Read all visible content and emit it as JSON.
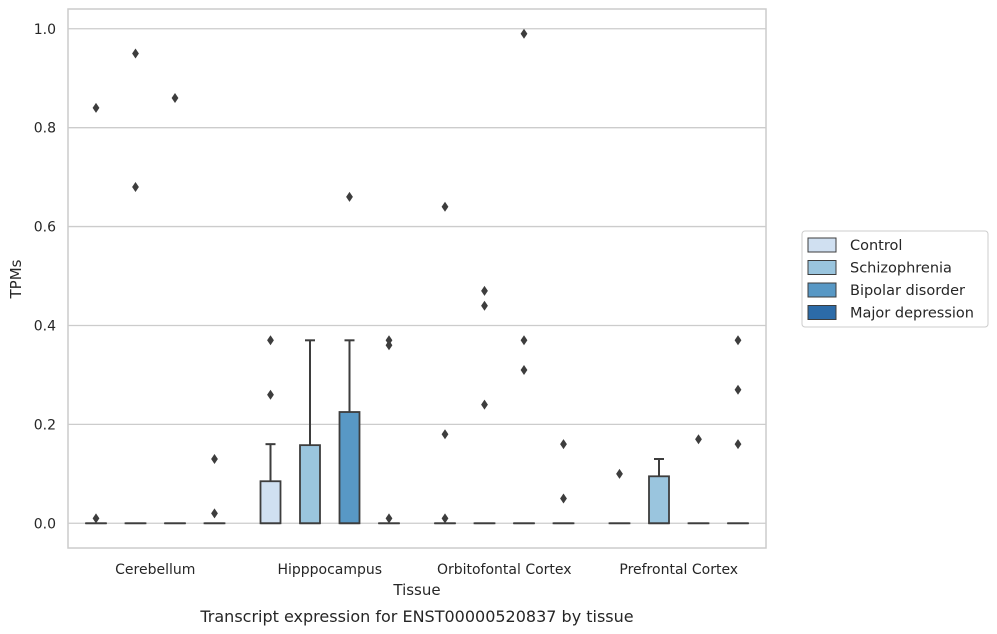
{
  "caption": "Transcript expression for ENST00000520837 by tissue",
  "colors": {
    "Control": "#d0e0f1",
    "Schizophrenia": "#9ac5de",
    "Bipolar disorder": "#5898c5",
    "Major depression": "#2c6ba8",
    "edge": "#3d3d3d",
    "grid": "#cccccc",
    "frame": "#cccccc"
  },
  "chart_data": {
    "type": "box",
    "xlabel": "Tissue",
    "ylabel": "TPMs",
    "categories": [
      "Cerebellum",
      "Hipppocampus",
      "Orbitofontal Cortex",
      "Prefrontal Cortex"
    ],
    "ylim": [
      -0.05,
      1.04
    ],
    "yticks": [
      "0.0",
      "0.2",
      "0.4",
      "0.6",
      "0.8",
      "1.0"
    ],
    "grid": true,
    "legend_position": "right",
    "series": [
      {
        "name": "Control",
        "boxes": [
          {
            "q1": 0,
            "median": 0,
            "q3": 0,
            "whisker_low": 0,
            "whisker_high": 0,
            "outliers": [
              0.01,
              0.84
            ]
          },
          {
            "q1": 0,
            "median": 0,
            "q3": 0.085,
            "whisker_low": 0,
            "whisker_high": 0.16,
            "outliers": [
              0.26,
              0.37
            ]
          },
          {
            "q1": 0,
            "median": 0,
            "q3": 0,
            "whisker_low": 0,
            "whisker_high": 0,
            "outliers": [
              0.01,
              0.18,
              0.64
            ]
          },
          {
            "q1": 0,
            "median": 0,
            "q3": 0,
            "whisker_low": 0,
            "whisker_high": 0,
            "outliers": [
              0.1
            ]
          }
        ]
      },
      {
        "name": "Schizophrenia",
        "boxes": [
          {
            "q1": 0,
            "median": 0,
            "q3": 0,
            "whisker_low": 0,
            "whisker_high": 0,
            "outliers": [
              0.68,
              0.95
            ]
          },
          {
            "q1": 0,
            "median": 0,
            "q3": 0.158,
            "whisker_low": 0,
            "whisker_high": 0.37,
            "outliers": []
          },
          {
            "q1": 0,
            "median": 0,
            "q3": 0,
            "whisker_low": 0,
            "whisker_high": 0,
            "outliers": [
              0.24,
              0.44,
              0.47
            ]
          },
          {
            "q1": 0,
            "median": 0,
            "q3": 0.095,
            "whisker_low": 0,
            "whisker_high": 0.13,
            "outliers": []
          }
        ]
      },
      {
        "name": "Bipolar disorder",
        "boxes": [
          {
            "q1": 0,
            "median": 0,
            "q3": 0,
            "whisker_low": 0,
            "whisker_high": 0,
            "outliers": [
              0.86
            ]
          },
          {
            "q1": 0,
            "median": 0,
            "q3": 0.225,
            "whisker_low": 0,
            "whisker_high": 0.37,
            "outliers": [
              0.66
            ]
          },
          {
            "q1": 0,
            "median": 0,
            "q3": 0,
            "whisker_low": 0,
            "whisker_high": 0,
            "outliers": [
              0.31,
              0.37,
              0.99
            ]
          },
          {
            "q1": 0,
            "median": 0,
            "q3": 0,
            "whisker_low": 0,
            "whisker_high": 0,
            "outliers": [
              0.17
            ]
          }
        ]
      },
      {
        "name": "Major depression",
        "boxes": [
          {
            "q1": 0,
            "median": 0,
            "q3": 0,
            "whisker_low": 0,
            "whisker_high": 0,
            "outliers": [
              0.02,
              0.13
            ]
          },
          {
            "q1": 0,
            "median": 0,
            "q3": 0,
            "whisker_low": 0,
            "whisker_high": 0,
            "outliers": [
              0.01,
              0.36,
              0.37
            ]
          },
          {
            "q1": 0,
            "median": 0,
            "q3": 0,
            "whisker_low": 0,
            "whisker_high": 0,
            "outliers": [
              0.05,
              0.16
            ]
          },
          {
            "q1": 0,
            "median": 0,
            "q3": 0,
            "whisker_low": 0,
            "whisker_high": 0,
            "outliers": [
              0.16,
              0.27,
              0.37
            ]
          }
        ]
      }
    ]
  }
}
